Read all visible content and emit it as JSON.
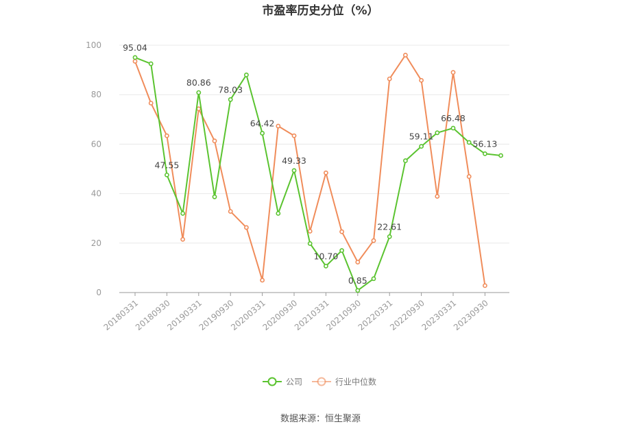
{
  "chart_data": {
    "type": "line",
    "title": "市盈率历史分位（%）",
    "source": "数据来源：恒生聚源",
    "ylim": [
      0,
      100
    ],
    "yticks": [
      0,
      20,
      40,
      60,
      80,
      100
    ],
    "x": [
      "20180331",
      "20180630",
      "20180930",
      "20181231",
      "20190331",
      "20190630",
      "20190930",
      "20191231",
      "20200331",
      "20200630",
      "20200930",
      "20201231",
      "20210331",
      "20210630",
      "20210930",
      "20211231",
      "20220331",
      "20220630",
      "20220930",
      "20221231",
      "20230331",
      "20230630",
      "20230930",
      "20231231"
    ],
    "xtick_labels": [
      "20180331",
      "20180930",
      "20190331",
      "20190930",
      "20200331",
      "20200930",
      "20210331",
      "20210930",
      "20220331",
      "20220930",
      "20230331",
      "20230930"
    ],
    "series": [
      {
        "name": "公司",
        "color": "#5ac32f",
        "values": [
          95.04,
          92.5,
          47.55,
          32.0,
          80.86,
          38.7,
          78.03,
          88.0,
          64.42,
          32.0,
          49.33,
          19.8,
          10.7,
          17.0,
          0.85,
          5.6,
          22.61,
          53.3,
          59.11,
          64.6,
          66.48,
          60.7,
          56.13,
          55.4
        ],
        "labels": {
          "0": "95.04",
          "2": "47.55",
          "4": "80.86",
          "6": "78.03",
          "8": "64.42",
          "10": "49.33",
          "12": "10.70",
          "14": "0.85",
          "16": "22.61",
          "18": "59.11",
          "20": "66.48",
          "22": "56.13"
        }
      },
      {
        "name": "行业中位数",
        "color": "#f08c5a",
        "values": [
          93.5,
          76.6,
          63.4,
          21.5,
          74.3,
          61.3,
          32.8,
          26.3,
          5.0,
          67.3,
          63.4,
          24.8,
          48.4,
          24.6,
          12.3,
          21.0,
          86.4,
          96.0,
          85.8,
          38.9,
          89.0,
          46.9,
          2.8,
          null
        ]
      }
    ],
    "grid": true,
    "legend_position": "bottom-center"
  }
}
